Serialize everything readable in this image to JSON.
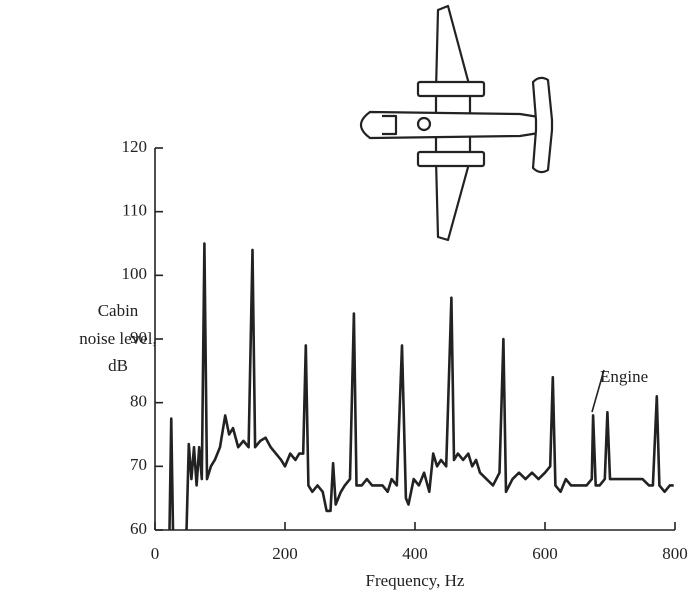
{
  "chart_data": {
    "type": "line",
    "ylabel_lines": [
      "Cabin",
      "noise level,",
      "dB"
    ],
    "xlabel": "Frequency, Hz",
    "annotation": "Engine",
    "xlim": [
      0,
      800
    ],
    "xticks": [
      0,
      200,
      400,
      600,
      800
    ],
    "ylim": [
      60,
      120
    ],
    "yticks": [
      60,
      70,
      80,
      90,
      100,
      110,
      120
    ],
    "color": "#222222",
    "x": [
      22,
      25,
      28,
      48,
      52,
      56,
      60,
      64,
      68,
      72,
      76,
      80,
      86,
      92,
      100,
      108,
      114,
      120,
      128,
      136,
      144,
      150,
      154,
      162,
      170,
      178,
      186,
      194,
      200,
      208,
      216,
      222,
      228,
      232,
      236,
      242,
      250,
      258,
      264,
      270,
      274,
      278,
      286,
      292,
      300,
      306,
      310,
      318,
      326,
      334,
      342,
      350,
      358,
      364,
      372,
      380,
      386,
      390,
      398,
      406,
      414,
      422,
      428,
      434,
      440,
      448,
      456,
      460,
      466,
      474,
      482,
      488,
      494,
      500,
      510,
      520,
      530,
      536,
      540,
      550,
      560,
      570,
      580,
      590,
      600,
      608,
      612,
      616,
      624,
      632,
      640,
      648,
      656,
      664,
      672,
      674,
      678,
      684,
      692,
      696,
      700,
      710,
      720,
      730,
      740,
      750,
      760,
      766,
      772,
      776,
      784,
      792,
      798
    ],
    "values": [
      58,
      77.5,
      58,
      58,
      73.5,
      68,
      73,
      67,
      73,
      68,
      105,
      68,
      70,
      71,
      73,
      78,
      75,
      76,
      73,
      74,
      73,
      104,
      73,
      74,
      74.5,
      73,
      72,
      71,
      70,
      72,
      71,
      72,
      72,
      89,
      67,
      66,
      67,
      66,
      63,
      63,
      70.5,
      64,
      66,
      67,
      68,
      94,
      67,
      67,
      68,
      67,
      67,
      67,
      66,
      68,
      67,
      89,
      65,
      64,
      68,
      67,
      69,
      66,
      72,
      70,
      71,
      70,
      96.5,
      71,
      72,
      71,
      72,
      70,
      71,
      69,
      68,
      67,
      69,
      90,
      66,
      68,
      69,
      68,
      69,
      68,
      69,
      70,
      84,
      67,
      66,
      68,
      67,
      67,
      67,
      67,
      68,
      78,
      67,
      67,
      68,
      78.5,
      68,
      68,
      68,
      68,
      68,
      68,
      67,
      67,
      81,
      67,
      66,
      67,
      67
    ]
  }
}
